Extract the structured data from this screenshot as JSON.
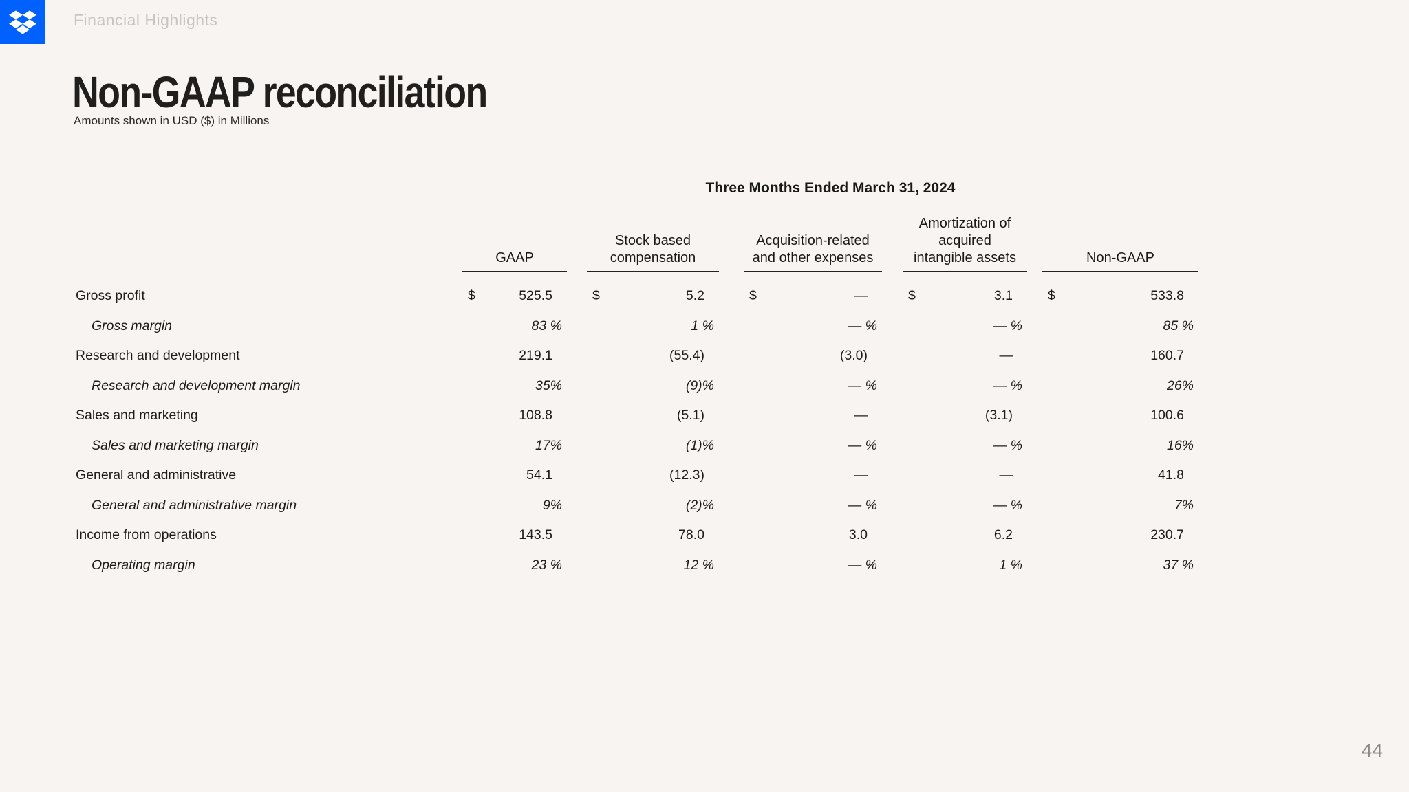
{
  "header": {
    "section_label": "Financial Highlights"
  },
  "logo": {
    "name": "Dropbox",
    "color": "#0061FF"
  },
  "title": "Non-GAAP reconciliation",
  "subtitle": "Amounts shown in USD ($) in Millions",
  "table": {
    "period_header": "Three Months Ended March 31, 2024",
    "columns": [
      "GAAP",
      "Stock based\ncompensation",
      "Acquisition-related\nand other expenses",
      "Amortization of\nacquired\nintangible assets",
      "Non-GAAP"
    ],
    "rows": [
      {
        "label": "Gross profit",
        "type": "money",
        "dollar": true,
        "values": [
          "525.5",
          "5.2",
          "—",
          "3.1",
          "533.8"
        ]
      },
      {
        "label": "Gross margin",
        "type": "percent",
        "values": [
          "83 %",
          "1 %",
          "— %",
          "— %",
          "85 %"
        ]
      },
      {
        "label": "Research and development",
        "type": "money",
        "dollar": false,
        "values": [
          "219.1",
          "(55.4)",
          "(3.0)",
          "—",
          "160.7"
        ]
      },
      {
        "label": "Research and development margin",
        "type": "percent",
        "values": [
          "35%",
          "(9)%",
          "— %",
          "— %",
          "26%"
        ]
      },
      {
        "label": "Sales and marketing",
        "type": "money",
        "dollar": false,
        "values": [
          "108.8",
          "(5.1)",
          "—",
          "(3.1)",
          "100.6"
        ]
      },
      {
        "label": "Sales and marketing margin",
        "type": "percent",
        "values": [
          "17%",
          "(1)%",
          "— %",
          "— %",
          "16%"
        ]
      },
      {
        "label": "General and administrative",
        "type": "money",
        "dollar": false,
        "values": [
          "54.1",
          "(12.3)",
          "—",
          "—",
          "41.8"
        ]
      },
      {
        "label": "General and administrative margin",
        "type": "percent",
        "values": [
          "9%",
          "(2)%",
          "— %",
          "— %",
          "7%"
        ]
      },
      {
        "label": "Income from operations",
        "type": "money",
        "dollar": false,
        "values": [
          "143.5",
          "78.0",
          "3.0",
          "6.2",
          "230.7"
        ]
      },
      {
        "label": "Operating margin",
        "type": "percent",
        "values": [
          "23 %",
          "12 %",
          "— %",
          "1 %",
          "37 %"
        ]
      }
    ]
  },
  "page_number": "44",
  "colors": {
    "background": "#F7F4F1",
    "accent_blue": "#0061FF",
    "text": "#1E1C1A",
    "section_label": "#C9C6C2",
    "page_number": "#8C8A87"
  }
}
